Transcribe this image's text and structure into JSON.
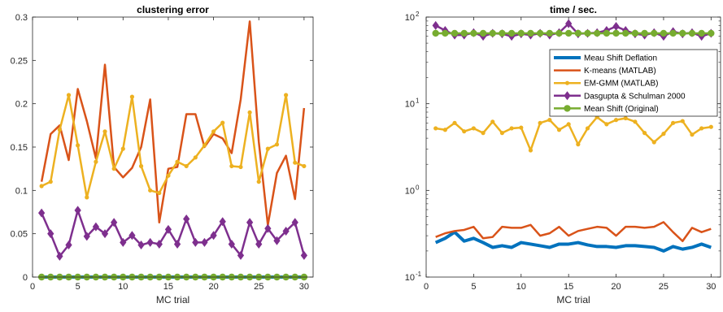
{
  "chart_data": [
    {
      "type": "line",
      "title": "clustering error",
      "xlabel": "MC trial",
      "ylabel": "",
      "xlim": [
        0,
        31
      ],
      "ylim": [
        0,
        0.3
      ],
      "xticks": [
        0,
        5,
        10,
        15,
        20,
        25,
        30
      ],
      "xtick_labels": [
        "0",
        "5",
        "10",
        "15",
        "20",
        "25",
        "30"
      ],
      "yticks": [
        0,
        0.05,
        0.1,
        0.15,
        0.2,
        0.25,
        0.3
      ],
      "ytick_labels": [
        "0",
        "0.05",
        "0.1",
        "0.15",
        "0.2",
        "0.25",
        "0.3"
      ],
      "x": [
        1,
        2,
        3,
        4,
        5,
        6,
        7,
        8,
        9,
        10,
        11,
        12,
        13,
        14,
        15,
        16,
        17,
        18,
        19,
        20,
        21,
        22,
        23,
        24,
        25,
        26,
        27,
        28,
        29,
        30
      ],
      "grid": false,
      "series": [
        {
          "key": "msd",
          "values": [
            0,
            0,
            0,
            0,
            0,
            0,
            0,
            0,
            0,
            0,
            0,
            0,
            0,
            0,
            0,
            0,
            0,
            0,
            0,
            0,
            0,
            0,
            0,
            0,
            0,
            0,
            0,
            0,
            0,
            0
          ]
        },
        {
          "key": "kmeans",
          "values": [
            0.11,
            0.165,
            0.175,
            0.135,
            0.217,
            0.18,
            0.137,
            0.245,
            0.127,
            0.115,
            0.126,
            0.15,
            0.205,
            0.063,
            0.125,
            0.127,
            0.188,
            0.188,
            0.15,
            0.165,
            0.16,
            0.143,
            0.205,
            0.295,
            0.156,
            0.06,
            0.12,
            0.14,
            0.09,
            0.195
          ]
        },
        {
          "key": "emgmm",
          "values": [
            0.105,
            0.11,
            0.17,
            0.21,
            0.152,
            0.092,
            0.133,
            0.168,
            0.125,
            0.148,
            0.208,
            0.128,
            0.1,
            0.097,
            0.117,
            0.133,
            0.128,
            0.138,
            0.152,
            0.168,
            0.178,
            0.128,
            0.127,
            0.19,
            0.11,
            0.148,
            0.153,
            0.21,
            0.132,
            0.128
          ]
        },
        {
          "key": "dasgupta",
          "values": [
            0.074,
            0.05,
            0.024,
            0.037,
            0.077,
            0.047,
            0.058,
            0.05,
            0.063,
            0.04,
            0.048,
            0.037,
            0.04,
            0.038,
            0.055,
            0.038,
            0.067,
            0.04,
            0.04,
            0.048,
            0.064,
            0.038,
            0.025,
            0.063,
            0.038,
            0.056,
            0.042,
            0.053,
            0.063,
            0.025
          ]
        },
        {
          "key": "ms",
          "values": [
            0,
            0,
            0,
            0,
            0,
            0,
            0,
            0,
            0,
            0,
            0,
            0,
            0,
            0,
            0,
            0,
            0,
            0,
            0,
            0,
            0,
            0,
            0,
            0,
            0,
            0,
            0,
            0,
            0,
            0
          ]
        }
      ]
    },
    {
      "type": "line",
      "title": "time / sec.",
      "xlabel": "MC trial",
      "ylabel": "",
      "yscale": "log",
      "xlim": [
        0,
        31
      ],
      "ylim": [
        0.1,
        100
      ],
      "xticks": [
        0,
        5,
        10,
        15,
        20,
        25,
        30
      ],
      "xtick_labels": [
        "0",
        "5",
        "10",
        "15",
        "20",
        "25",
        "30"
      ],
      "yticks": [
        0.1,
        1,
        10,
        100
      ],
      "ytick_labels": [
        {
          "base": "10",
          "exp": "-1"
        },
        {
          "base": "10",
          "exp": "0"
        },
        {
          "base": "10",
          "exp": "1"
        },
        {
          "base": "10",
          "exp": "2"
        }
      ],
      "x": [
        1,
        2,
        3,
        4,
        5,
        6,
        7,
        8,
        9,
        10,
        11,
        12,
        13,
        14,
        15,
        16,
        17,
        18,
        19,
        20,
        21,
        22,
        23,
        24,
        25,
        26,
        27,
        28,
        29,
        30
      ],
      "grid": false,
      "legend": {
        "placement": "top-right"
      },
      "series": [
        {
          "key": "msd",
          "name": "Meau Shift Deflation",
          "values": [
            0.25,
            0.28,
            0.33,
            0.26,
            0.28,
            0.25,
            0.22,
            0.23,
            0.22,
            0.25,
            0.24,
            0.23,
            0.22,
            0.24,
            0.24,
            0.25,
            0.235,
            0.225,
            0.225,
            0.22,
            0.23,
            0.23,
            0.225,
            0.22,
            0.2,
            0.225,
            0.21,
            0.22,
            0.24,
            0.22
          ]
        },
        {
          "key": "kmeans",
          "name": "K-means (MATLAB)",
          "values": [
            0.29,
            0.32,
            0.34,
            0.35,
            0.38,
            0.28,
            0.29,
            0.38,
            0.37,
            0.37,
            0.4,
            0.3,
            0.32,
            0.38,
            0.3,
            0.34,
            0.36,
            0.38,
            0.37,
            0.3,
            0.38,
            0.38,
            0.37,
            0.38,
            0.43,
            0.33,
            0.26,
            0.37,
            0.33,
            0.36
          ]
        },
        {
          "key": "emgmm",
          "name": "EM-GMM (MATLAB)",
          "values": [
            5.2,
            5.0,
            6.0,
            4.8,
            5.2,
            4.6,
            6.2,
            4.6,
            5.2,
            5.3,
            2.9,
            6.0,
            6.5,
            5.0,
            5.8,
            3.4,
            5.2,
            7.0,
            5.8,
            6.5,
            6.8,
            6.2,
            4.6,
            3.6,
            4.5,
            6.0,
            6.3,
            4.4,
            5.2,
            5.4
          ]
        },
        {
          "key": "dasgupta",
          "name": "Dasgupta & Schulman 2000",
          "values": [
            80,
            70,
            62,
            62,
            66,
            60,
            65,
            64,
            60,
            64,
            62,
            65,
            62,
            66,
            84,
            64,
            65,
            66,
            70,
            78,
            70,
            64,
            62,
            66,
            60,
            68,
            64,
            66,
            60,
            65
          ]
        },
        {
          "key": "ms",
          "name": "Mean Shift (Original)",
          "values": [
            65,
            65,
            65,
            65,
            65,
            65,
            65,
            65,
            65,
            65,
            65,
            65,
            65,
            65,
            65,
            65,
            65,
            65,
            65,
            65,
            65,
            65,
            65,
            65,
            65,
            65,
            65,
            65,
            65,
            65
          ]
        }
      ]
    }
  ],
  "series_styles": {
    "msd": {
      "color": "#0072bd",
      "marker": "none",
      "width": 4
    },
    "kmeans": {
      "color": "#d95319",
      "marker": "none",
      "width": 2.5
    },
    "emgmm": {
      "color": "#edb120",
      "marker": "dot",
      "width": 2.5
    },
    "dasgupta": {
      "color": "#7e2f8e",
      "marker": "diamond",
      "width": 2.5
    },
    "ms": {
      "color": "#77ac30",
      "marker": "circle",
      "width": 2.5
    }
  }
}
